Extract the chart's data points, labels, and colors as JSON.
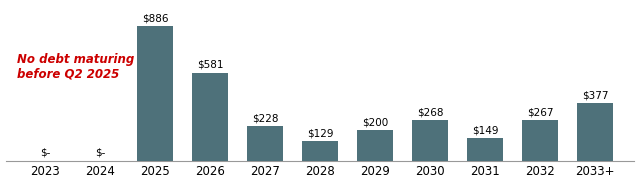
{
  "categories": [
    "2023",
    "2024",
    "2025",
    "2026",
    "2027",
    "2028",
    "2029",
    "2030",
    "2031",
    "2032",
    "2033+"
  ],
  "values": [
    0,
    0,
    886,
    581,
    228,
    129,
    200,
    268,
    149,
    267,
    377
  ],
  "labels": [
    "$-",
    "$-",
    "$886",
    "$581",
    "$228",
    "$129",
    "$200",
    "$268",
    "$149",
    "$267",
    "$377"
  ],
  "bar_color": "#4e717a",
  "background_color": "#ffffff",
  "annotation_text": "No debt maturing\nbefore Q2 2025",
  "annotation_color": "#cc0000",
  "ylim": [
    0,
    1020
  ],
  "label_fontsize": 7.5,
  "tick_fontsize": 8.5,
  "annotation_fontsize": 8.5,
  "bar_width": 0.65
}
